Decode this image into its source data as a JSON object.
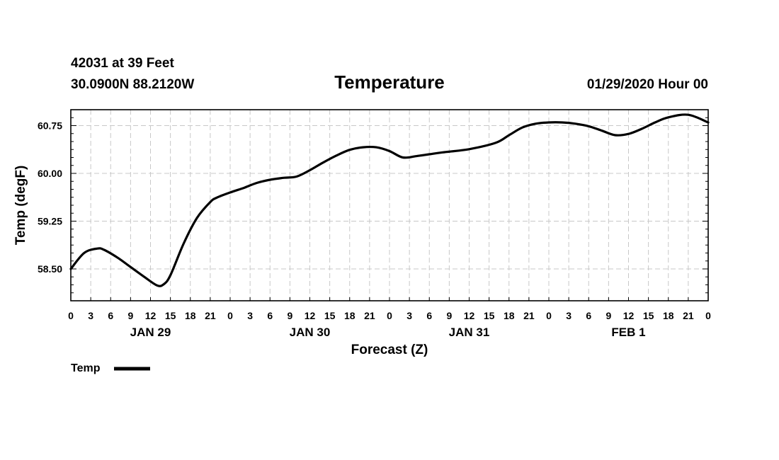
{
  "header": {
    "station": "42031 at 39 Feet",
    "coords": "30.0900N 88.2120W",
    "datetime": "01/29/2020 Hour 00"
  },
  "chart_data": {
    "type": "line",
    "title": "Temperature",
    "xlabel": "Forecast (Z)",
    "ylabel": "Temp (degF)",
    "x_unit": "forecast hour",
    "xlim": [
      0,
      96
    ],
    "ylim": [
      58.0,
      61.0
    ],
    "yticks": [
      58.5,
      59.25,
      60.0,
      60.75
    ],
    "ytick_labels": [
      "58.50",
      "59.25",
      "60.00",
      "60.75"
    ],
    "xticks": [
      0,
      3,
      6,
      9,
      12,
      15,
      18,
      21,
      24,
      27,
      30,
      33,
      36,
      39,
      42,
      45,
      48,
      51,
      54,
      57,
      60,
      63,
      66,
      69,
      72,
      75,
      78,
      81,
      84,
      87,
      90,
      93,
      96
    ],
    "xtick_labels": [
      "0",
      "3",
      "6",
      "9",
      "12",
      "15",
      "18",
      "21",
      "0",
      "3",
      "6",
      "9",
      "12",
      "15",
      "18",
      "21",
      "0",
      "3",
      "6",
      "9",
      "12",
      "15",
      "18",
      "21",
      "0",
      "3",
      "6",
      "9",
      "12",
      "15",
      "18",
      "21",
      "0"
    ],
    "day_labels": [
      {
        "text": "JAN 29",
        "hour": 12
      },
      {
        "text": "JAN 30",
        "hour": 36
      },
      {
        "text": "JAN 31",
        "hour": 60
      },
      {
        "text": "FEB 1",
        "hour": 84
      }
    ],
    "grid": true,
    "legend": {
      "position": "bottom-left",
      "entries": [
        "Temp"
      ]
    },
    "series": [
      {
        "name": "Temp",
        "color": "#000000",
        "x": [
          0,
          2,
          4,
          5,
          7,
          9,
          11,
          13,
          14,
          15,
          17,
          19,
          21,
          22,
          24,
          26,
          28,
          30,
          32,
          34,
          36,
          38,
          40,
          42,
          44,
          46,
          48,
          50,
          52,
          54,
          56,
          60,
          64,
          66,
          68,
          70,
          72,
          74,
          76,
          78,
          80,
          82,
          84,
          86,
          88,
          90,
          93,
          96
        ],
        "y": [
          58.5,
          58.75,
          58.82,
          58.8,
          58.68,
          58.53,
          58.38,
          58.24,
          58.26,
          58.4,
          58.9,
          59.3,
          59.55,
          59.62,
          59.7,
          59.77,
          59.85,
          59.9,
          59.93,
          59.95,
          60.05,
          60.17,
          60.28,
          60.37,
          60.41,
          60.41,
          60.35,
          60.25,
          60.27,
          60.3,
          60.33,
          60.38,
          60.48,
          60.6,
          60.72,
          60.78,
          60.8,
          60.8,
          60.78,
          60.74,
          60.67,
          60.6,
          60.62,
          60.7,
          60.8,
          60.88,
          60.92,
          60.8
        ]
      }
    ]
  }
}
